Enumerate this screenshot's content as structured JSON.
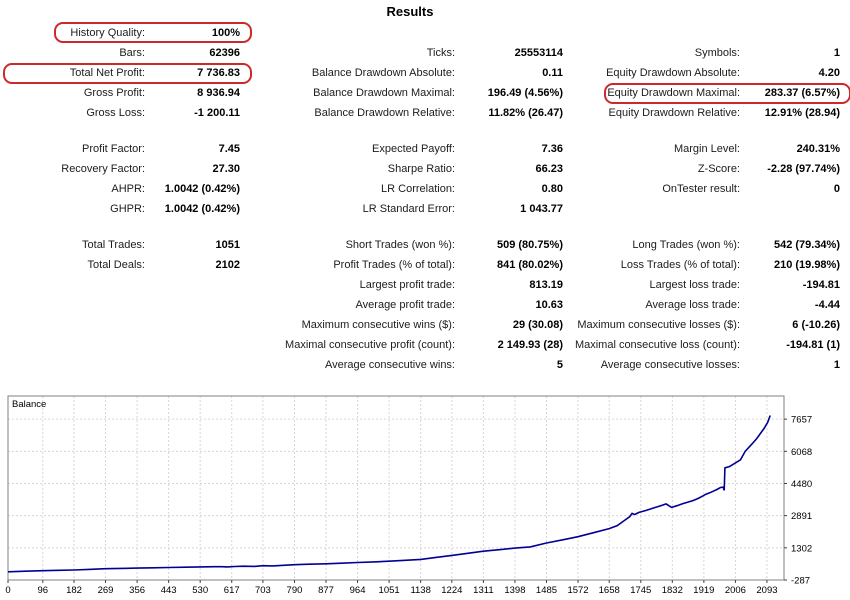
{
  "report": {
    "title": "Results",
    "highlight_color": "#cc2a2a",
    "highlights": [
      "history-quality",
      "total-net-profit",
      "equity-drawdown-maximal"
    ],
    "blocks": [
      {
        "rows": [
          [
            {
              "label": "History Quality:",
              "value": "100%"
            },
            null,
            null
          ],
          [
            {
              "label": "Bars:",
              "value": "62396"
            },
            {
              "label": "Ticks:",
              "value": "25553114"
            },
            {
              "label": "Symbols:",
              "value": "1"
            }
          ],
          [
            {
              "label": "Total Net Profit:",
              "value": "7 736.83"
            },
            {
              "label": "Balance Drawdown Absolute:",
              "value": "0.11"
            },
            {
              "label": "Equity Drawdown Absolute:",
              "value": "4.20"
            }
          ],
          [
            {
              "label": "Gross Profit:",
              "value": "8 936.94"
            },
            {
              "label": "Balance Drawdown Maximal:",
              "value": "196.49 (4.56%)"
            },
            {
              "label": "Equity Drawdown Maximal:",
              "value": "283.37 (6.57%)"
            }
          ],
          [
            {
              "label": "Gross Loss:",
              "value": "-1 200.11"
            },
            {
              "label": "Balance Drawdown Relative:",
              "value": "11.82% (26.47)"
            },
            {
              "label": "Equity Drawdown Relative:",
              "value": "12.91% (28.94)"
            }
          ]
        ]
      },
      {
        "rows": [
          [
            {
              "label": "Profit Factor:",
              "value": "7.45"
            },
            {
              "label": "Expected Payoff:",
              "value": "7.36"
            },
            {
              "label": "Margin Level:",
              "value": "240.31%"
            }
          ],
          [
            {
              "label": "Recovery Factor:",
              "value": "27.30"
            },
            {
              "label": "Sharpe Ratio:",
              "value": "66.23"
            },
            {
              "label": "Z-Score:",
              "value": "-2.28 (97.74%)"
            }
          ],
          [
            {
              "label": "AHPR:",
              "value": "1.0042 (0.42%)"
            },
            {
              "label": "LR Correlation:",
              "value": "0.80"
            },
            {
              "label": "OnTester result:",
              "value": "0"
            }
          ],
          [
            {
              "label": "GHPR:",
              "value": "1.0042 (0.42%)"
            },
            {
              "label": "LR Standard Error:",
              "value": "1 043.77"
            },
            null
          ]
        ]
      },
      {
        "rows": [
          [
            {
              "label": "Total Trades:",
              "value": "1051"
            },
            {
              "label": "Short Trades (won %):",
              "value": "509 (80.75%)"
            },
            {
              "label": "Long Trades (won %):",
              "value": "542 (79.34%)"
            }
          ],
          [
            {
              "label": "Total Deals:",
              "value": "2102"
            },
            {
              "label": "Profit Trades (% of total):",
              "value": "841 (80.02%)"
            },
            {
              "label": "Loss Trades (% of total):",
              "value": "210 (19.98%)"
            }
          ],
          [
            null,
            {
              "label": "Largest profit trade:",
              "value": "813.19"
            },
            {
              "label": "Largest loss trade:",
              "value": "-194.81"
            }
          ],
          [
            null,
            {
              "label": "Average profit trade:",
              "value": "10.63"
            },
            {
              "label": "Average loss trade:",
              "value": "-4.44"
            }
          ],
          [
            null,
            {
              "label": "Maximum consecutive wins ($):",
              "value": "29 (30.08)"
            },
            {
              "label": "Maximum consecutive losses ($):",
              "value": "6 (-10.26)"
            }
          ],
          [
            null,
            {
              "label": "Maximal consecutive profit (count):",
              "value": "2 149.93 (28)"
            },
            {
              "label": "Maximal consecutive loss (count):",
              "value": "-194.81 (1)"
            }
          ],
          [
            null,
            {
              "label": "Average consecutive wins:",
              "value": "5"
            },
            {
              "label": "Average consecutive losses:",
              "value": "1"
            }
          ]
        ]
      }
    ]
  },
  "chart_data": {
    "type": "line",
    "title": "Balance",
    "legend_position": "top-left",
    "grid": "dashed",
    "grid_color": "#d6d6d6",
    "border_color": "#808080",
    "xlim": [
      0,
      2140
    ],
    "ylim": [
      -287,
      8800
    ],
    "x_ticks": [
      0,
      96,
      182,
      269,
      356,
      443,
      530,
      617,
      703,
      790,
      877,
      964,
      1051,
      1138,
      1224,
      1311,
      1398,
      1485,
      1572,
      1658,
      1745,
      1832,
      1919,
      2006,
      2093
    ],
    "y_ticks": [
      -287,
      1302,
      2891,
      4480,
      6068,
      7657
    ],
    "series": [
      {
        "name": "Balance",
        "color": "#000096",
        "x": [
          0,
          48,
          96,
          140,
          182,
          230,
          269,
          310,
          356,
          400,
          443,
          490,
          530,
          570,
          590,
          605,
          625,
          650,
          680,
          703,
          730,
          760,
          790,
          830,
          877,
          920,
          964,
          1008,
          1051,
          1095,
          1138,
          1180,
          1224,
          1268,
          1311,
          1355,
          1398,
          1440,
          1485,
          1530,
          1572,
          1615,
          1658,
          1680,
          1700,
          1715,
          1721,
          1728,
          1740,
          1760,
          1780,
          1800,
          1815,
          1830,
          1845,
          1860,
          1875,
          1890,
          1905,
          1915,
          1925,
          1935,
          1945,
          1955,
          1965,
          1972,
          1975,
          1977,
          1990,
          2005,
          2020,
          2033,
          2045,
          2055,
          2065,
          2075,
          2085,
          2095,
          2102
        ],
        "y": [
          120,
          150,
          170,
          190,
          205,
          240,
          272,
          285,
          300,
          315,
          330,
          345,
          358,
          372,
          370,
          358,
          380,
          395,
          383,
          420,
          408,
          440,
          470,
          492,
          515,
          545,
          575,
          605,
          640,
          685,
          729,
          830,
          930,
          1030,
          1135,
          1210,
          1290,
          1350,
          1540,
          1700,
          1850,
          2050,
          2253,
          2400,
          2650,
          2850,
          3000,
          2950,
          3050,
          3150,
          3270,
          3380,
          3470,
          3300,
          3380,
          3480,
          3560,
          3640,
          3760,
          3850,
          3950,
          4020,
          4100,
          4180,
          4280,
          4300,
          4140,
          5250,
          5320,
          5480,
          5650,
          6068,
          6300,
          6500,
          6700,
          6950,
          7200,
          7500,
          7837
        ]
      }
    ]
  }
}
